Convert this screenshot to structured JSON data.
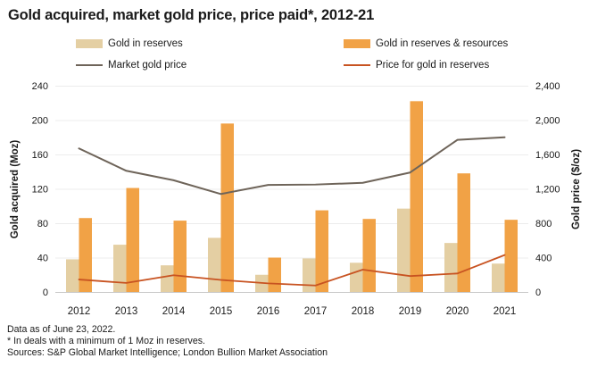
{
  "title": "Gold acquired, market gold price, price paid*, 2012-21",
  "colors": {
    "gold_in_reserves": "#E4CFA3",
    "gold_in_reserves_resources": "#F1A246",
    "market_gold_price": "#6E6459",
    "price_for_gold_in_reserves": "#C85321",
    "gridline": "#ECECEC",
    "axis_line": "#C9C9C9",
    "text": "#1A1A1A"
  },
  "legend": {
    "items": [
      {
        "label": "Gold in reserves",
        "swatch": "bar",
        "color_key": "gold_in_reserves"
      },
      {
        "label": "Gold in reserves & resources",
        "swatch": "bar",
        "color_key": "gold_in_reserves_resources"
      },
      {
        "label": "Market gold price",
        "swatch": "line",
        "color_key": "market_gold_price"
      },
      {
        "label": "Price for gold in reserves",
        "swatch": "line",
        "color_key": "price_for_gold_in_reserves"
      }
    ]
  },
  "chart_data": {
    "type": "bar",
    "subtype": "grouped bars with two overlay lines (dual axis)",
    "categories": [
      "2012",
      "2013",
      "2014",
      "2015",
      "2016",
      "2017",
      "2018",
      "2019",
      "2020",
      "2021"
    ],
    "series": [
      {
        "name": "Gold in reserves",
        "type": "bar",
        "axis": "left",
        "color_key": "gold_in_reserves",
        "values": [
          38,
          55,
          31,
          63,
          20,
          39,
          34,
          97,
          57,
          33
        ]
      },
      {
        "name": "Gold in reserves & resources",
        "type": "bar",
        "axis": "left",
        "color_key": "gold_in_reserves_resources",
        "values": [
          86,
          121,
          83,
          196,
          40,
          95,
          85,
          222,
          138,
          84
        ]
      },
      {
        "name": "Market gold price",
        "type": "line",
        "axis": "right",
        "color_key": "market_gold_price",
        "values": [
          1670,
          1410,
          1300,
          1140,
          1245,
          1250,
          1270,
          1390,
          1770,
          1800
        ]
      },
      {
        "name": "Price for gold in reserves",
        "type": "line",
        "axis": "right",
        "color_key": "price_for_gold_in_reserves",
        "values": [
          145,
          105,
          195,
          140,
          100,
          75,
          260,
          185,
          215,
          430
        ]
      }
    ],
    "left_axis": {
      "label": "Gold acquired (Moz)",
      "min": 0,
      "max": 240,
      "ticks": [
        0,
        40,
        80,
        120,
        160,
        200,
        240
      ],
      "tick_labels": [
        "0",
        "40",
        "80",
        "120",
        "160",
        "200",
        "240"
      ]
    },
    "right_axis": {
      "label": "Gold price ($/oz)",
      "min": 0,
      "max": 2400,
      "ticks": [
        0,
        400,
        800,
        1200,
        1600,
        2000,
        2400
      ],
      "tick_labels": [
        "0",
        "400",
        "800",
        "1,200",
        "1,600",
        "2,000",
        "2,400"
      ]
    },
    "grid": true,
    "legend_position": "top"
  },
  "footer": {
    "line1": "Data as of June 23, 2022.",
    "line2": "* In deals with a minimum of 1 Moz in reserves.",
    "line3": "Sources: S&P Global Market Intelligence; London Bullion Market Association"
  }
}
